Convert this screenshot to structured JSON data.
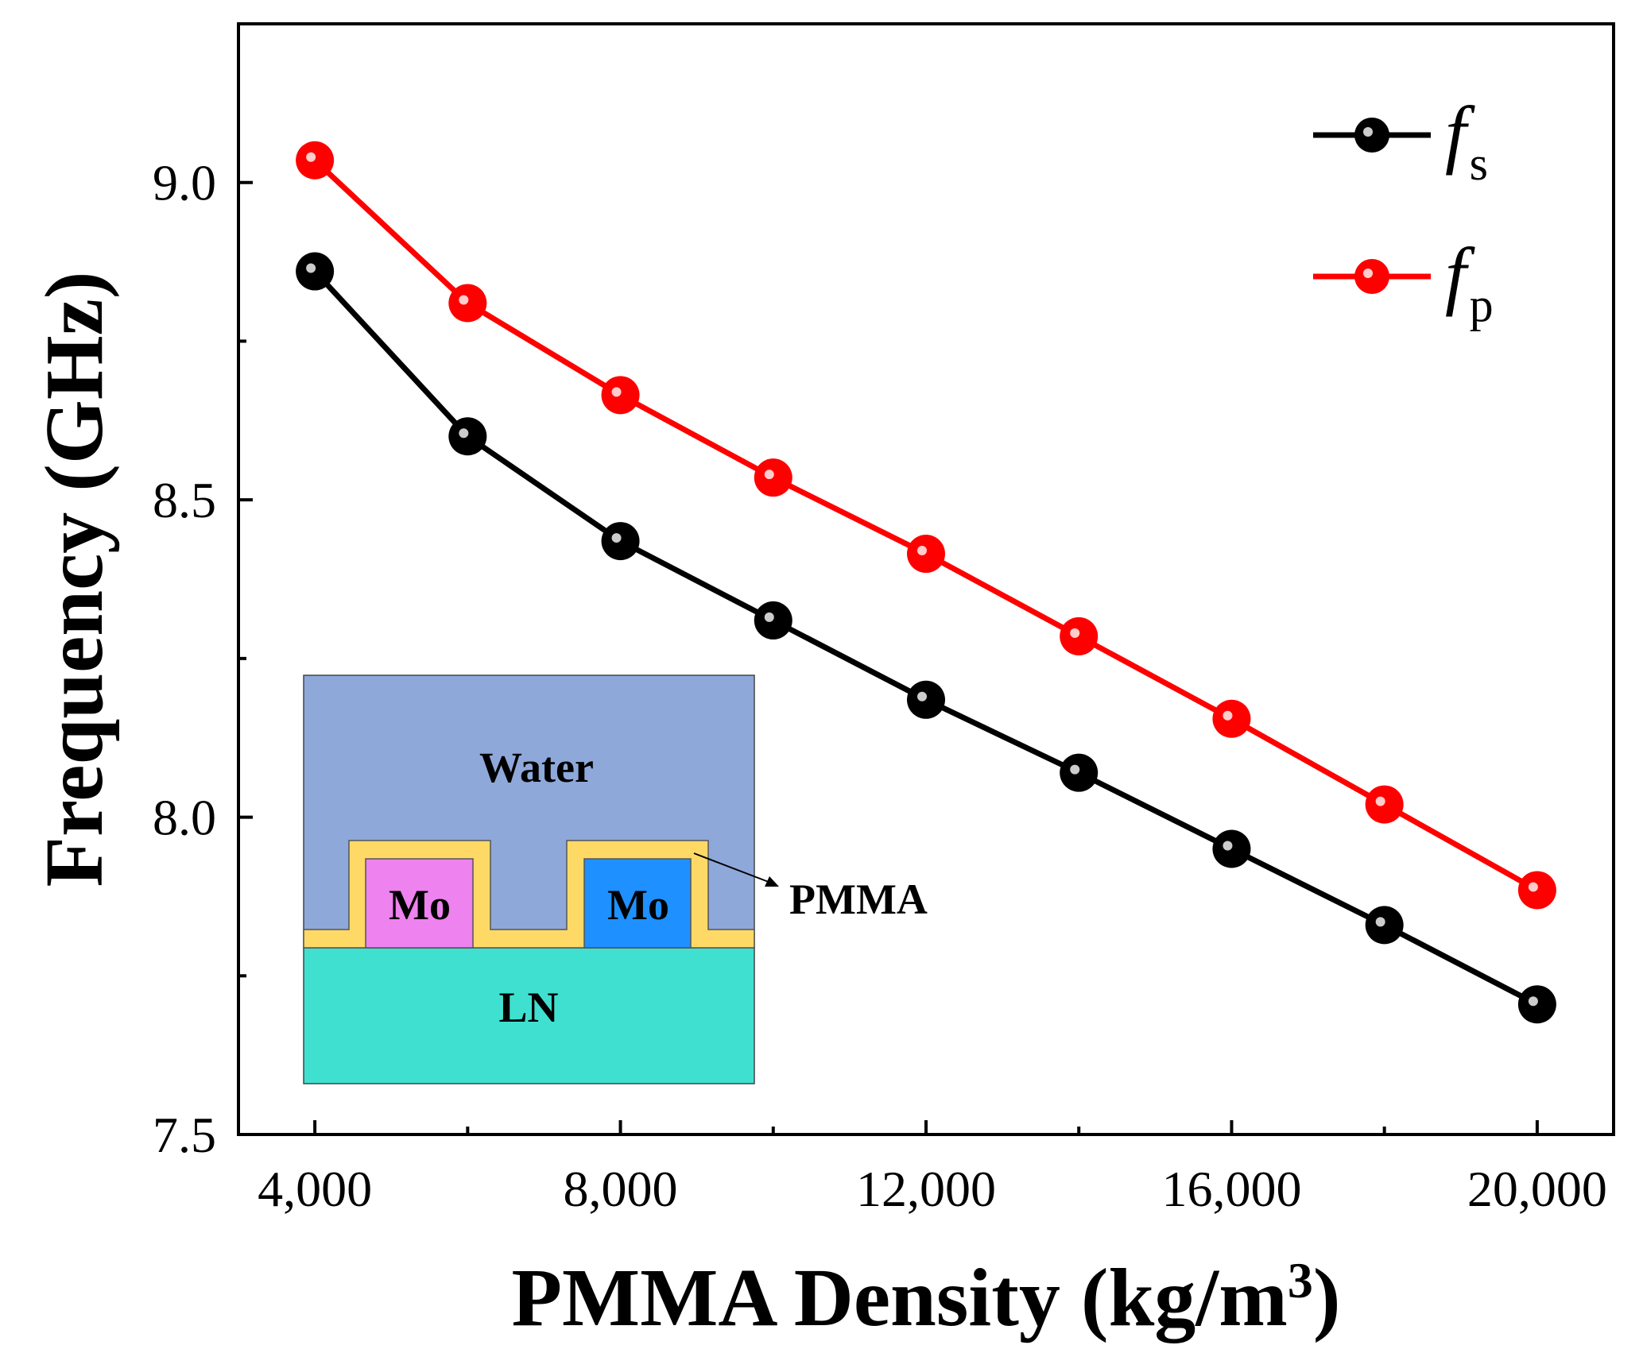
{
  "chart_data": {
    "type": "line",
    "xlabel": "PMMA Density (kg/m",
    "xlabel_sup": "3",
    "xlabel_close": ")",
    "ylabel": "Frequency (GHz)",
    "x": [
      4000,
      6000,
      8000,
      10000,
      12000,
      14000,
      16000,
      18000,
      20000
    ],
    "xlim": [
      3000,
      21000
    ],
    "ylim": [
      7.5,
      9.25
    ],
    "x_ticks": [
      4000,
      6000,
      8000,
      10000,
      12000,
      14000,
      16000,
      18000,
      20000
    ],
    "x_tick_labels": [
      "4,000",
      "",
      "8,000",
      "",
      "12,000",
      "",
      "16,000",
      "",
      "20,000"
    ],
    "y_ticks": [
      7.5,
      7.75,
      8.0,
      8.25,
      8.5,
      8.75,
      9.0
    ],
    "y_tick_labels": [
      "7.5",
      "",
      "8.0",
      "",
      "8.5",
      "",
      "9.0"
    ],
    "grid": false,
    "legend_position": "top-right",
    "series": [
      {
        "name": "f",
        "subscript": "s",
        "color": "#000000",
        "values": [
          8.86,
          8.6,
          8.435,
          8.31,
          8.185,
          8.07,
          7.95,
          7.83,
          7.705
        ]
      },
      {
        "name": "f",
        "subscript": "p",
        "color": "#ff0000",
        "values": [
          9.035,
          8.81,
          8.665,
          8.535,
          8.415,
          8.285,
          8.155,
          8.02,
          7.885
        ]
      }
    ]
  },
  "inset": {
    "labels": {
      "water": "Water",
      "mo_left": "Mo",
      "mo_right": "Mo",
      "pmma": "PMMA",
      "ln": "LN"
    },
    "colors": {
      "water": "#8FA8DA",
      "mo_left": "#EE82EE",
      "mo_right": "#1E90FF",
      "pmma": "#FFD966",
      "ln": "#40E0D0"
    }
  }
}
